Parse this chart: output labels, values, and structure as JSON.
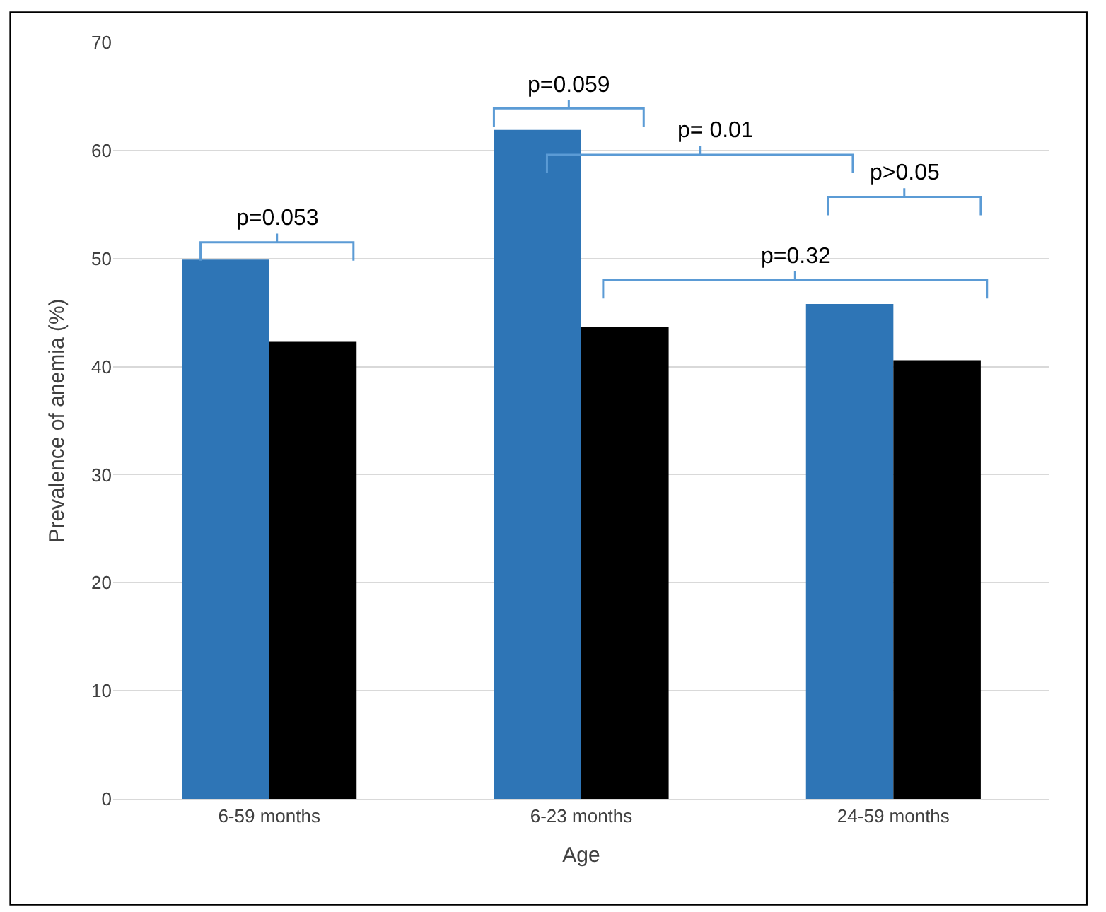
{
  "chart_data": {
    "type": "bar",
    "xlabel": "Age",
    "ylabel": "Prevalence of anemia (%)",
    "categories": [
      "6-59 months",
      "6-23 months",
      "24-59 months"
    ],
    "series": [
      {
        "color": "#2e75b6",
        "values": [
          49.9,
          61.9,
          45.8
        ]
      },
      {
        "color": "#000000",
        "values": [
          42.3,
          43.7,
          40.6
        ]
      }
    ],
    "ylim": [
      0,
      70
    ],
    "yticks": [
      0,
      10,
      20,
      30,
      40,
      50,
      60,
      70
    ],
    "grid": "y",
    "annotations": [
      "p=0.053",
      "p=0.059",
      "p= 0.01",
      "p>0.05",
      "p=0.32"
    ]
  }
}
